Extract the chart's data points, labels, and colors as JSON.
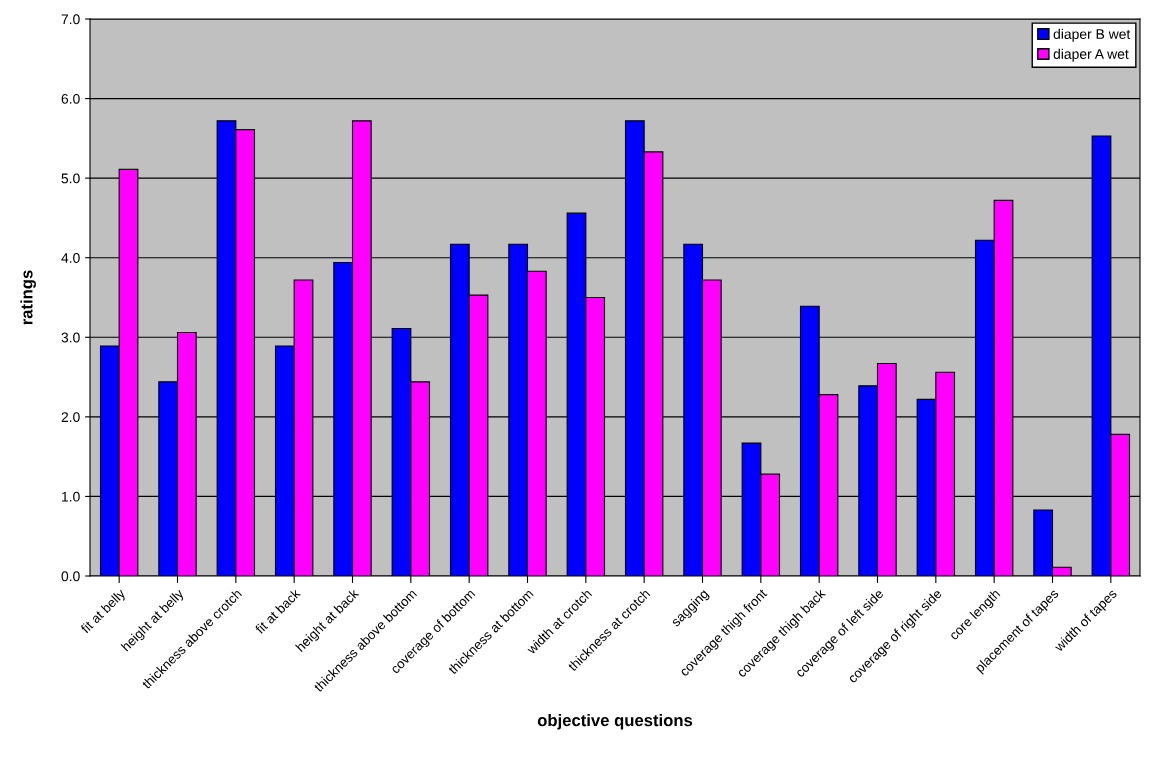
{
  "chart_data": {
    "type": "bar",
    "xlabel": "objective questions",
    "ylabel": "ratings",
    "categories": [
      "fit at belly",
      "height at belly",
      "thickness above crotch",
      "fit at back",
      "height at back",
      "thickness above bottom",
      "coverage of bottom",
      "thickness at bottom",
      "width at crotch",
      "thickness at crotch",
      "sagging",
      "coverage thigh front",
      "coverage thigh back",
      "coverage of left side",
      "coverage of right side",
      "core length",
      "placement of tapes",
      "width of tapes"
    ],
    "series": [
      {
        "name": "diaper B wet",
        "color": "#0000ff",
        "values": [
          2.89,
          2.44,
          5.72,
          2.89,
          3.94,
          3.11,
          4.17,
          4.17,
          4.56,
          5.72,
          4.17,
          1.67,
          3.39,
          2.39,
          2.22,
          4.22,
          0.83,
          5.53
        ]
      },
      {
        "name": "diaper A wet",
        "color": "#ff00ff",
        "values": [
          5.11,
          3.06,
          5.61,
          3.72,
          5.72,
          2.44,
          3.53,
          3.83,
          3.5,
          5.33,
          3.72,
          1.28,
          2.28,
          2.67,
          2.56,
          4.72,
          0.11,
          1.78
        ]
      }
    ],
    "ylim": [
      0,
      7
    ],
    "yticks": [
      {
        "value": 0,
        "label": "0.0"
      },
      {
        "value": 1,
        "label": "1.0"
      },
      {
        "value": 2,
        "label": "2.0"
      },
      {
        "value": 3,
        "label": "3.0"
      },
      {
        "value": 4,
        "label": "4.0"
      },
      {
        "value": 5,
        "label": "5.0"
      },
      {
        "value": 6,
        "label": "6.0"
      },
      {
        "value": 7,
        "label": "7.0"
      }
    ],
    "grid": "y",
    "legend": "top right"
  }
}
